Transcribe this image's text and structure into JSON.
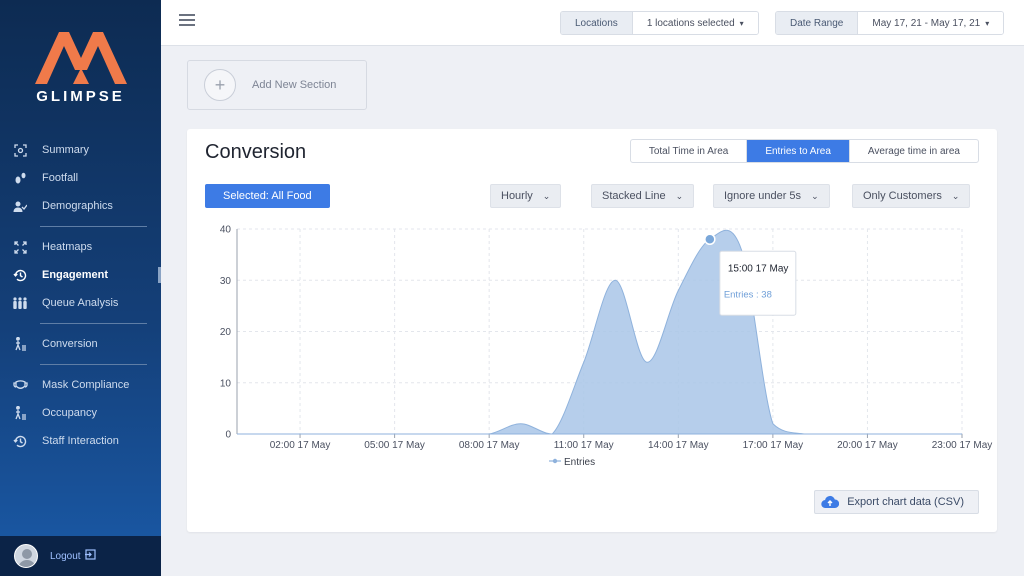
{
  "brand": {
    "name": "GLIMPSE",
    "accent": "#f07a4a"
  },
  "sidebar": {
    "items": [
      {
        "label": "Summary",
        "icon": "target-icon"
      },
      {
        "label": "Footfall",
        "icon": "footprints-icon"
      },
      {
        "label": "Demographics",
        "icon": "users-icon"
      },
      {
        "label": "Heatmaps",
        "icon": "expand-icon"
      },
      {
        "label": "Engagement",
        "icon": "history-icon"
      },
      {
        "label": "Queue Analysis",
        "icon": "queue-icon"
      },
      {
        "label": "Conversion",
        "icon": "walking-icon"
      },
      {
        "label": "Mask Compliance",
        "icon": "mask-icon"
      },
      {
        "label": "Occupancy",
        "icon": "walking-icon"
      },
      {
        "label": "Staff Interaction",
        "icon": "history-icon"
      }
    ],
    "logout": "Logout"
  },
  "topbar": {
    "locations_label": "Locations",
    "locations_value": "1 locations selected",
    "date_label": "Date Range",
    "date_value": "May 17, 21 - May 17, 21"
  },
  "add_section": "Add New Section",
  "card": {
    "title": "Conversion",
    "tabs": [
      "Total Time in Area",
      "Entries to Area",
      "Average time in area"
    ],
    "active_tab": "Entries to Area",
    "selected_button": "Selected: All Food",
    "dropdowns": [
      "Hourly",
      "Stacked Line",
      "Ignore under 5s",
      "Only Customers"
    ],
    "export": "Export chart data (CSV)"
  },
  "chart_data": {
    "type": "area",
    "x": [
      "00:00 17 May",
      "01:00 17 May",
      "02:00 17 May",
      "03:00 17 May",
      "04:00 17 May",
      "05:00 17 May",
      "06:00 17 May",
      "07:00 17 May",
      "08:00 17 May",
      "09:00 17 May",
      "10:00 17 May",
      "11:00 17 May",
      "12:00 17 May",
      "13:00 17 May",
      "14:00 17 May",
      "15:00 17 May",
      "16:00 17 May",
      "17:00 17 May",
      "18:00 17 May",
      "19:00 17 May",
      "20:00 17 May",
      "21:00 17 May",
      "22:00 17 May",
      "23:00 17 May"
    ],
    "tick_labels": [
      "02:00 17 May",
      "05:00 17 May",
      "08:00 17 May",
      "11:00 17 May",
      "14:00 17 May",
      "17:00 17 May",
      "20:00 17 May",
      "23:00 17 May"
    ],
    "series": [
      {
        "name": "Entries",
        "values": [
          0,
          0,
          0,
          0,
          0,
          0,
          0,
          0,
          0,
          2,
          0,
          14,
          30,
          14,
          28,
          38,
          36,
          2,
          0,
          0,
          0,
          0,
          0,
          0
        ]
      }
    ],
    "ylim": [
      0,
      40
    ],
    "yticks": [
      0,
      10,
      20,
      30,
      40
    ],
    "grid": true,
    "legend": "bottom",
    "color": "#a9c6e8",
    "tooltip": {
      "title": "15:00 17 May",
      "text": "Entries : 38",
      "index": 15
    }
  }
}
